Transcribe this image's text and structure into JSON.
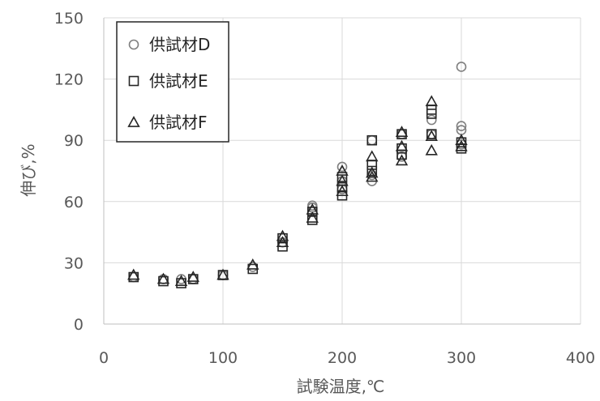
{
  "chart_data": {
    "type": "scatter",
    "title": "",
    "xlabel": "試験温度,℃",
    "ylabel": "伸び,%",
    "xlim": [
      0,
      400
    ],
    "ylim": [
      0,
      150
    ],
    "xticks": [
      0,
      100,
      200,
      300,
      400
    ],
    "yticks": [
      0,
      30,
      60,
      90,
      120,
      150
    ],
    "grid": true,
    "legend_position": "top-left",
    "series": [
      {
        "name": "供試材D",
        "marker": "circle",
        "color": "#7f7f7f",
        "points": [
          [
            25,
            23
          ],
          [
            50,
            22
          ],
          [
            65,
            22
          ],
          [
            75,
            22
          ],
          [
            100,
            24
          ],
          [
            125,
            28
          ],
          [
            150,
            40
          ],
          [
            175,
            57
          ],
          [
            175,
            58
          ],
          [
            200,
            66
          ],
          [
            200,
            70
          ],
          [
            200,
            77
          ],
          [
            225,
            70
          ],
          [
            225,
            73
          ],
          [
            225,
            90
          ],
          [
            250,
            82
          ],
          [
            250,
            93
          ],
          [
            275,
            93
          ],
          [
            275,
            100
          ],
          [
            300,
            88
          ],
          [
            300,
            95
          ],
          [
            300,
            97
          ],
          [
            300,
            126
          ]
        ]
      },
      {
        "name": "供試材E",
        "marker": "square",
        "color": "#262626",
        "points": [
          [
            25,
            23
          ],
          [
            50,
            21
          ],
          [
            65,
            20
          ],
          [
            75,
            22
          ],
          [
            100,
            24
          ],
          [
            125,
            27
          ],
          [
            150,
            38
          ],
          [
            150,
            42
          ],
          [
            175,
            51
          ],
          [
            175,
            55
          ],
          [
            200,
            63
          ],
          [
            200,
            67
          ],
          [
            200,
            72
          ],
          [
            225,
            75
          ],
          [
            225,
            78
          ],
          [
            225,
            90
          ],
          [
            250,
            83
          ],
          [
            250,
            86
          ],
          [
            250,
            93
          ],
          [
            275,
            93
          ],
          [
            275,
            103
          ],
          [
            275,
            105
          ],
          [
            300,
            86
          ],
          [
            300,
            89
          ]
        ]
      },
      {
        "name": "供試材F",
        "marker": "triangle",
        "color": "#262626",
        "points": [
          [
            25,
            24
          ],
          [
            50,
            22
          ],
          [
            65,
            21
          ],
          [
            75,
            23
          ],
          [
            100,
            24
          ],
          [
            125,
            29
          ],
          [
            150,
            40
          ],
          [
            150,
            43
          ],
          [
            175,
            52
          ],
          [
            175,
            56
          ],
          [
            200,
            65
          ],
          [
            200,
            70
          ],
          [
            200,
            75
          ],
          [
            225,
            72
          ],
          [
            225,
            74
          ],
          [
            225,
            82
          ],
          [
            250,
            80
          ],
          [
            250,
            87
          ],
          [
            250,
            94
          ],
          [
            275,
            85
          ],
          [
            275,
            92
          ],
          [
            275,
            109
          ],
          [
            300,
            87
          ],
          [
            300,
            90
          ]
        ]
      }
    ]
  }
}
